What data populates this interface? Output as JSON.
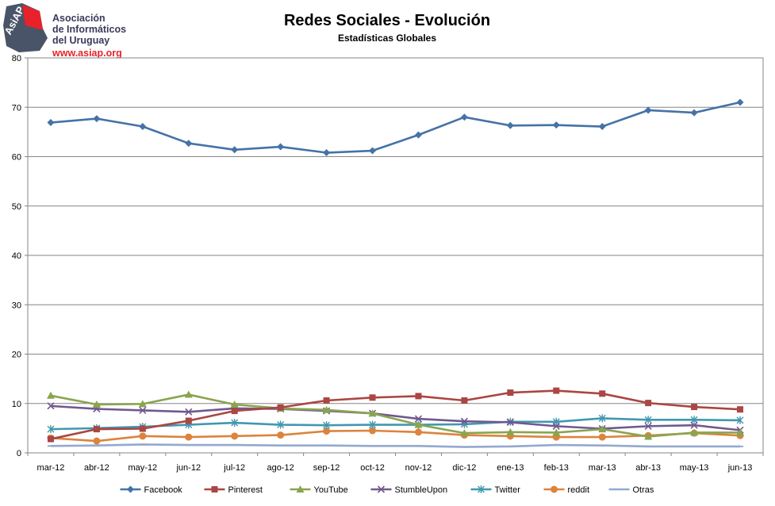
{
  "logo": {
    "badge": "AsiAP",
    "line1": "Asociación",
    "line2": "de Informáticos",
    "line3": "del Uruguay",
    "url": "www.asiap.org"
  },
  "chart_data": {
    "type": "line",
    "title": "Redes Sociales - Evolución",
    "subtitle": "Estadísticas Globales",
    "xlabel": "",
    "ylabel": "",
    "ylim": [
      0,
      80
    ],
    "yticks": [
      0,
      10,
      20,
      30,
      40,
      50,
      60,
      70,
      80
    ],
    "grid": true,
    "legend_position": "bottom",
    "categories": [
      "mar-12",
      "abr-12",
      "may-12",
      "jun-12",
      "jul-12",
      "ago-12",
      "sep-12",
      "oct-12",
      "nov-12",
      "dic-12",
      "ene-13",
      "feb-13",
      "mar-13",
      "abr-13",
      "may-13",
      "jun-13"
    ],
    "series": [
      {
        "name": "Facebook",
        "color": "#4572a7",
        "marker": "diamond",
        "values": [
          66.9,
          67.7,
          66.1,
          62.7,
          61.4,
          62.0,
          60.8,
          61.2,
          64.4,
          68.0,
          66.3,
          66.4,
          66.1,
          69.4,
          68.9,
          71.0
        ]
      },
      {
        "name": "Pinterest",
        "color": "#aa4643",
        "marker": "square",
        "values": [
          2.8,
          4.8,
          4.9,
          6.5,
          8.5,
          9.2,
          10.6,
          11.2,
          11.5,
          10.6,
          12.2,
          12.6,
          12.0,
          10.1,
          9.3,
          8.8
        ]
      },
      {
        "name": "YouTube",
        "color": "#89a54e",
        "marker": "triangle",
        "values": [
          11.6,
          9.8,
          9.9,
          11.8,
          9.8,
          9.0,
          8.7,
          8.0,
          5.7,
          4.0,
          4.2,
          4.1,
          4.8,
          3.3,
          4.1,
          4.1
        ]
      },
      {
        "name": "StumbleUpon",
        "color": "#71588f",
        "marker": "x",
        "values": [
          9.5,
          8.9,
          8.6,
          8.3,
          9.0,
          8.9,
          8.5,
          8.0,
          6.9,
          6.4,
          6.2,
          5.4,
          4.9,
          5.4,
          5.6,
          4.6
        ]
      },
      {
        "name": "Twitter",
        "color": "#4198af",
        "marker": "star",
        "values": [
          4.8,
          5.0,
          5.3,
          5.7,
          6.1,
          5.7,
          5.6,
          5.7,
          5.7,
          5.8,
          6.3,
          6.3,
          7.0,
          6.7,
          6.7,
          6.6
        ]
      },
      {
        "name": "reddit",
        "color": "#db843d",
        "marker": "circle",
        "values": [
          3.0,
          2.4,
          3.4,
          3.2,
          3.4,
          3.6,
          4.4,
          4.5,
          4.2,
          3.6,
          3.4,
          3.2,
          3.2,
          3.5,
          4.0,
          3.5
        ]
      },
      {
        "name": "Otras",
        "color": "#93a9cf",
        "marker": "dash",
        "values": [
          1.4,
          1.5,
          1.7,
          1.6,
          1.6,
          1.5,
          1.5,
          1.4,
          1.4,
          1.2,
          1.3,
          1.6,
          1.5,
          1.3,
          1.3,
          1.3
        ]
      }
    ]
  }
}
